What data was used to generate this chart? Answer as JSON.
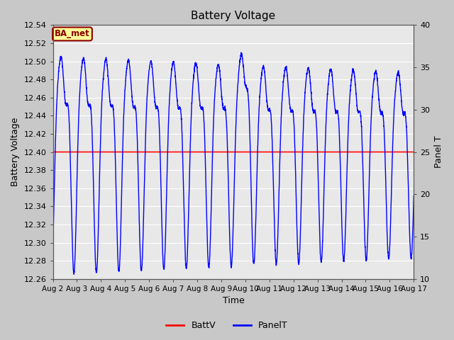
{
  "title": "Battery Voltage",
  "xlabel": "Time",
  "ylabel_left": "Battery Voltage",
  "ylabel_right": "Panel T",
  "ylim_left": [
    12.26,
    12.54
  ],
  "ylim_right": [
    10,
    40
  ],
  "yticks_left": [
    12.26,
    12.28,
    12.3,
    12.32,
    12.34,
    12.36,
    12.38,
    12.4,
    12.42,
    12.44,
    12.46,
    12.48,
    12.5,
    12.52,
    12.54
  ],
  "yticks_right": [
    10,
    15,
    20,
    25,
    30,
    35,
    40
  ],
  "plot_bg_color": "#e8e8e8",
  "fig_bg_color": "#c8c8c8",
  "batt_v_value": 12.4,
  "batt_v_color": "red",
  "panel_t_color": "blue",
  "legend_batt_label": "BattV",
  "legend_panel_label": "PanelT",
  "annotation_text": "BA_met",
  "annotation_bg": "#ffff99",
  "annotation_border": "#8b0000",
  "x_tick_labels": [
    "Aug 2",
    "Aug 3",
    "Aug 4",
    "Aug 5",
    "Aug 6",
    "Aug 7",
    "Aug 8",
    "Aug 9",
    "Aug 10",
    "Aug 11",
    "Aug 12",
    "Aug 13",
    "Aug 14",
    "Aug 15",
    "Aug 16",
    "Aug 17"
  ],
  "grid_color": "#ffffff",
  "title_fontsize": 11,
  "axis_fontsize": 8,
  "label_fontsize": 9
}
